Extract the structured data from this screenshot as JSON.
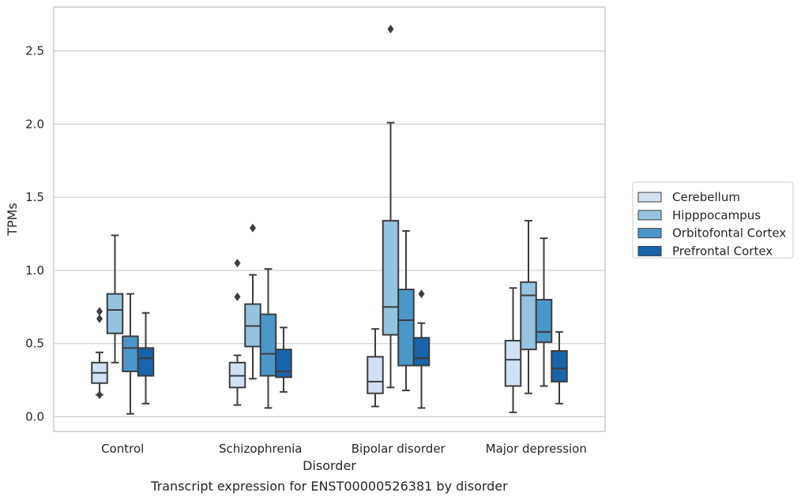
{
  "chart_data": {
    "type": "boxplot",
    "title": "",
    "caption": "Transcript expression for ENST00000526381 by disorder",
    "xlabel": "Disorder",
    "ylabel": "TPMs",
    "ylim": [
      -0.1,
      2.8
    ],
    "yticks": [
      0.0,
      0.5,
      1.0,
      1.5,
      2.0,
      2.5
    ],
    "ytick_labels": [
      "0.0",
      "0.5",
      "1.0",
      "1.5",
      "2.0",
      "2.5"
    ],
    "grid": "horizontal",
    "legend_position": "right-outside",
    "categories": [
      "Control",
      "Schizophrenia",
      "Bipolar disorder",
      "Major depression"
    ],
    "series": [
      {
        "name": "Cerebellum",
        "color": "#d0e1f2",
        "boxes": [
          {
            "whisker_low": 0.15,
            "q1": 0.23,
            "median": 0.3,
            "q3": 0.37,
            "whisker_high": 0.44,
            "outliers": [
              0.72,
              0.67,
              0.15
            ]
          },
          {
            "whisker_low": 0.08,
            "q1": 0.2,
            "median": 0.28,
            "q3": 0.37,
            "whisker_high": 0.42,
            "outliers": [
              0.82,
              1.05
            ]
          },
          {
            "whisker_low": 0.07,
            "q1": 0.16,
            "median": 0.24,
            "q3": 0.41,
            "whisker_high": 0.6,
            "outliers": []
          },
          {
            "whisker_low": 0.03,
            "q1": 0.21,
            "median": 0.39,
            "q3": 0.52,
            "whisker_high": 0.88,
            "outliers": []
          }
        ]
      },
      {
        "name": "Hipppocampus",
        "color": "#94c4df",
        "boxes": [
          {
            "whisker_low": 0.37,
            "q1": 0.57,
            "median": 0.73,
            "q3": 0.84,
            "whisker_high": 1.24,
            "outliers": []
          },
          {
            "whisker_low": 0.26,
            "q1": 0.48,
            "median": 0.62,
            "q3": 0.77,
            "whisker_high": 0.97,
            "outliers": [
              1.29
            ]
          },
          {
            "whisker_low": 0.2,
            "q1": 0.56,
            "median": 0.75,
            "q3": 1.34,
            "whisker_high": 2.01,
            "outliers": [
              2.65
            ]
          },
          {
            "whisker_low": 0.16,
            "q1": 0.46,
            "median": 0.83,
            "q3": 0.92,
            "whisker_high": 1.34,
            "outliers": []
          }
        ]
      },
      {
        "name": "Orbitofontal Cortex",
        "color": "#4a98c9",
        "boxes": [
          {
            "whisker_low": 0.02,
            "q1": 0.31,
            "median": 0.47,
            "q3": 0.55,
            "whisker_high": 0.84,
            "outliers": []
          },
          {
            "whisker_low": 0.06,
            "q1": 0.28,
            "median": 0.43,
            "q3": 0.7,
            "whisker_high": 1.01,
            "outliers": []
          },
          {
            "whisker_low": 0.18,
            "q1": 0.35,
            "median": 0.66,
            "q3": 0.87,
            "whisker_high": 1.27,
            "outliers": []
          },
          {
            "whisker_low": 0.21,
            "q1": 0.51,
            "median": 0.58,
            "q3": 0.8,
            "whisker_high": 1.22,
            "outliers": []
          }
        ]
      },
      {
        "name": "Prefrontal Cortex",
        "color": "#1764ab",
        "boxes": [
          {
            "whisker_low": 0.09,
            "q1": 0.28,
            "median": 0.4,
            "q3": 0.47,
            "whisker_high": 0.71,
            "outliers": []
          },
          {
            "whisker_low": 0.17,
            "q1": 0.27,
            "median": 0.31,
            "q3": 0.46,
            "whisker_high": 0.61,
            "outliers": []
          },
          {
            "whisker_low": 0.06,
            "q1": 0.35,
            "median": 0.4,
            "q3": 0.54,
            "whisker_high": 0.64,
            "outliers": [
              0.84
            ]
          },
          {
            "whisker_low": 0.09,
            "q1": 0.24,
            "median": 0.33,
            "q3": 0.45,
            "whisker_high": 0.58,
            "outliers": []
          }
        ]
      }
    ],
    "colors": {
      "grid": "#cccccc",
      "spine": "#cccccc",
      "box_edge": "#3d3d3d",
      "outlier": "#3d3d3d"
    }
  }
}
